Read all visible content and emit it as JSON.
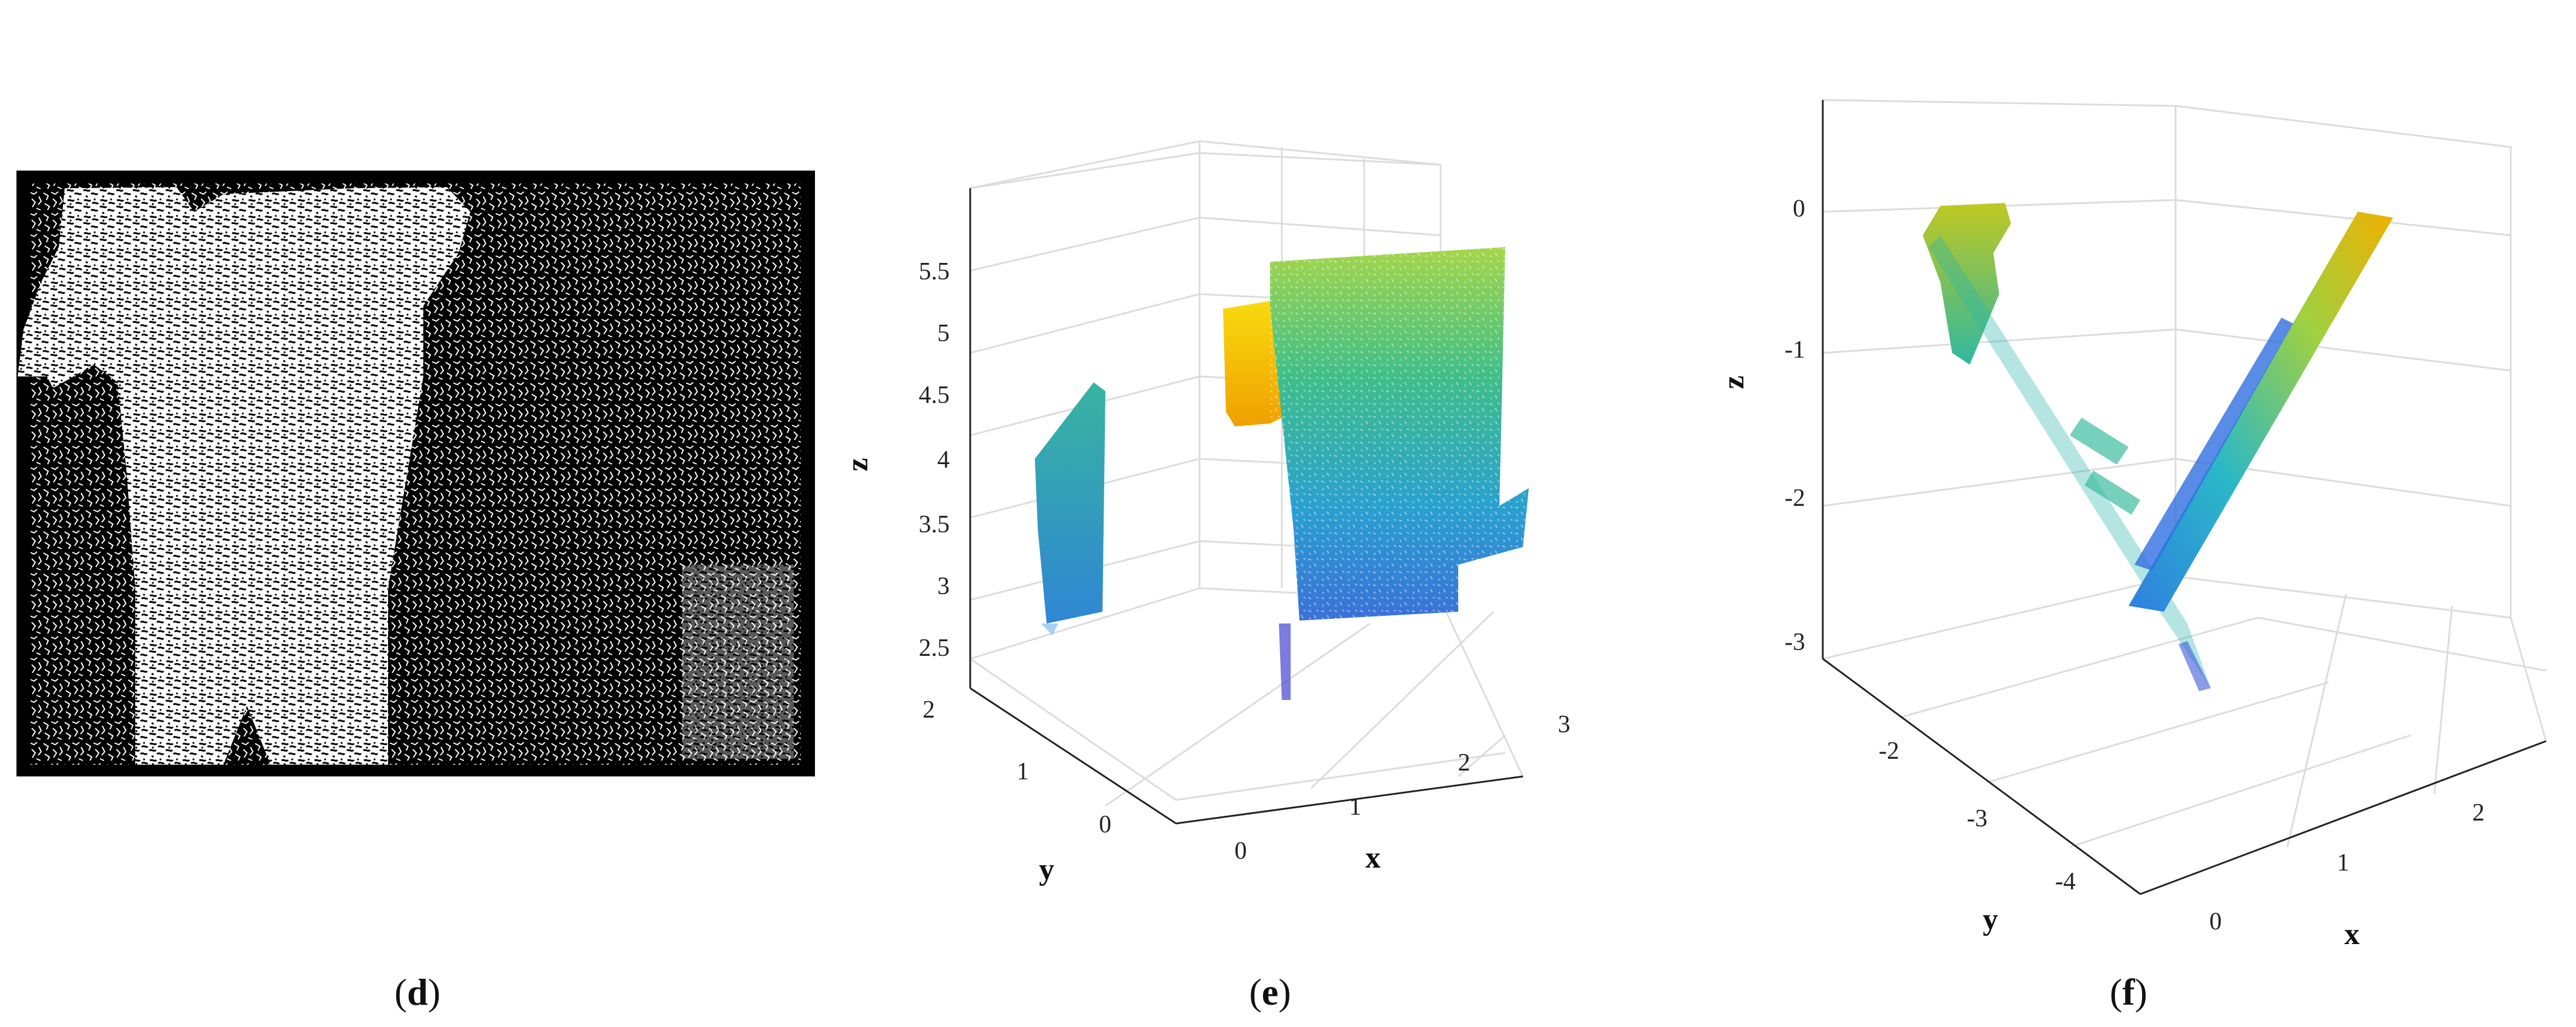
{
  "panels": [
    {
      "id": "d",
      "caption_open": "(",
      "caption_letter": "d",
      "caption_close": ")"
    },
    {
      "id": "e",
      "caption_open": "(",
      "caption_letter": "e",
      "caption_close": ")"
    },
    {
      "id": "f",
      "caption_open": "(",
      "caption_letter": "f",
      "caption_close": ")"
    }
  ],
  "chart_data": [
    {
      "panel": "e",
      "type": "scatter",
      "title": "",
      "xlabel": "x",
      "ylabel": "y",
      "zlabel": "z",
      "x_ticks": [
        "0",
        "1",
        "2",
        "3"
      ],
      "y_ticks": [
        "0",
        "1",
        "2"
      ],
      "z_ticks": [
        "2.5",
        "3",
        "3.5",
        "4",
        "4.5",
        "5",
        "5.5"
      ],
      "xlim": [
        0,
        3.5
      ],
      "ylim": [
        0,
        2
      ],
      "zlim": [
        2.5,
        5.5
      ],
      "grid": true,
      "colormap": [
        "#4040d0",
        "#2f8ed8",
        "#20b8b8",
        "#60c860",
        "#c8d830",
        "#f8d010",
        "#f0a000"
      ]
    },
    {
      "panel": "f",
      "type": "scatter",
      "title": "",
      "xlabel": "x",
      "ylabel": "y",
      "zlabel": "z",
      "x_ticks": [
        "0",
        "1",
        "2"
      ],
      "y_ticks": [
        "-2",
        "-3",
        "-4"
      ],
      "z_ticks": [
        "0",
        "-1",
        "-2",
        "-3"
      ],
      "xlim": [
        0,
        2.5
      ],
      "ylim": [
        -4,
        -2
      ],
      "zlim": [
        -3,
        0
      ],
      "grid": true,
      "colormap": [
        "#4040d0",
        "#2f8ed8",
        "#20b8b8",
        "#60c860",
        "#c8d830",
        "#f8d010",
        "#f0a000"
      ]
    }
  ]
}
